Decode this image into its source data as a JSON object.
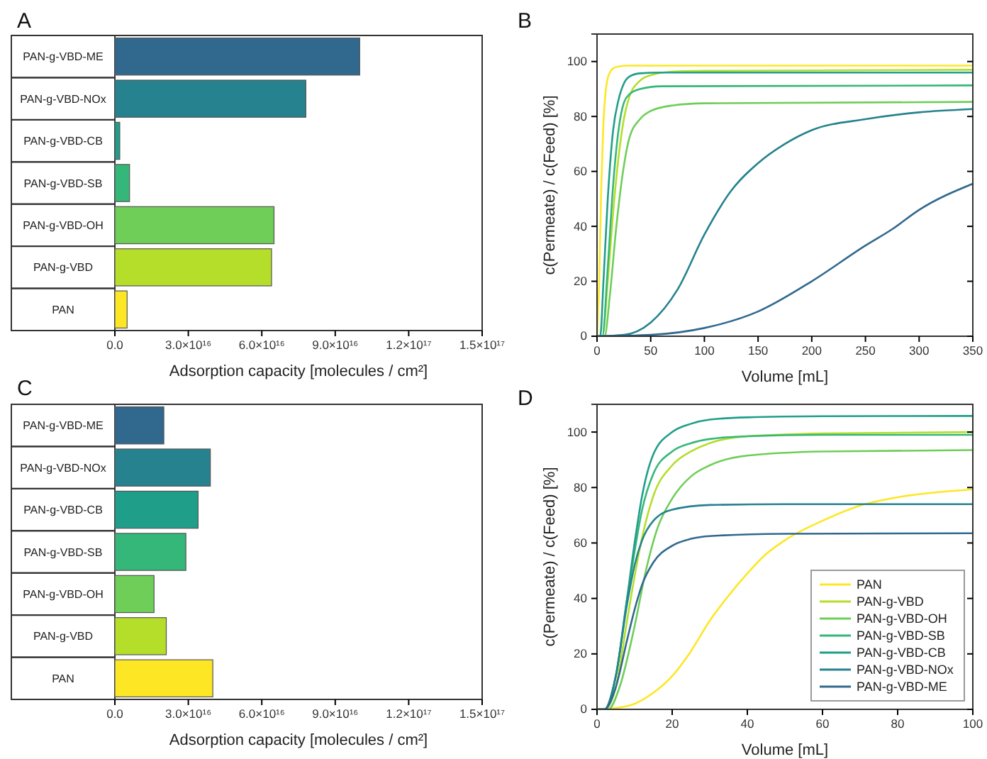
{
  "chart_data": [
    {
      "type": "bar",
      "title": "A",
      "orientation": "horizontal",
      "categories": [
        "PAN-g-VBD-ME",
        "PAN-g-VBD-NOx",
        "PAN-g-VBD-CB",
        "PAN-g-VBD-SB",
        "PAN-g-VBD-OH",
        "PAN-g-VBD",
        "PAN"
      ],
      "values": [
        1e+17,
        7.8e+16,
        2000000000000000.0,
        6000000000000000.0,
        6.5e+16,
        6.4e+16,
        5000000000000000.0
      ],
      "colors": [
        "#31688e",
        "#26828e",
        "#1f9e89",
        "#35b779",
        "#6ece58",
        "#b5de2b",
        "#fde725"
      ],
      "xlim": [
        0,
        1.5e+17
      ],
      "xticks": [
        {
          "value": 0,
          "label": "0.0"
        },
        {
          "value": 3e+16,
          "label": "3.0×10¹⁶"
        },
        {
          "value": 6e+16,
          "label": "6.0×10¹⁶"
        },
        {
          "value": 9e+16,
          "label": "9.0×10¹⁶"
        },
        {
          "value": 1.2e+17,
          "label": "1.2×10¹⁷"
        },
        {
          "value": 1.5e+17,
          "label": "1.5×10¹⁷"
        }
      ],
      "xlabel": "Adsorption capacity [molecules / cm²]"
    },
    {
      "type": "line",
      "title": "B",
      "xlabel": "Volume [mL]",
      "ylabel": "c(Permeate) / c(Feed) [%]",
      "xlim": [
        0,
        350
      ],
      "ylim": [
        0,
        110
      ],
      "xticks": [
        0,
        50,
        100,
        150,
        200,
        250,
        300,
        350
      ],
      "yticks": [
        0,
        20,
        40,
        60,
        80,
        100
      ],
      "series": [
        {
          "color": "#fde725",
          "x": [
            0,
            2,
            4,
            6,
            8,
            10,
            12,
            15,
            20,
            30,
            50,
            100,
            200,
            350
          ],
          "values": [
            0,
            20,
            55,
            78,
            89,
            94,
            96,
            97.5,
            98.2,
            98.5,
            98.5,
            98.5,
            98.5,
            98.5
          ]
        },
        {
          "color": "#b5de2b",
          "x": [
            0,
            5,
            10,
            15,
            20,
            25,
            30,
            40,
            50,
            70,
            100,
            350
          ],
          "values": [
            0,
            0,
            20,
            45,
            65,
            79,
            87,
            93,
            95,
            96.3,
            96.6,
            97
          ]
        },
        {
          "color": "#6ece58",
          "x": [
            0,
            7,
            12,
            18,
            25,
            30,
            40,
            50,
            70,
            100,
            350
          ],
          "values": [
            0,
            0,
            15,
            40,
            62,
            72,
            79,
            82,
            84,
            84.8,
            85.3
          ]
        },
        {
          "color": "#35b779",
          "x": [
            0,
            5,
            10,
            15,
            20,
            25,
            30,
            40,
            60,
            350
          ],
          "values": [
            0,
            0,
            25,
            55,
            75,
            85,
            88,
            90,
            91,
            91.3
          ]
        },
        {
          "color": "#1f9e89",
          "x": [
            0,
            3,
            6,
            10,
            15,
            20,
            25,
            30,
            40,
            60,
            350
          ],
          "values": [
            0,
            0,
            20,
            50,
            75,
            86,
            92,
            94.5,
            95.7,
            96,
            96
          ]
        },
        {
          "color": "#26828e",
          "x": [
            0,
            25,
            50,
            75,
            100,
            125,
            150,
            175,
            200,
            250,
            300,
            350
          ],
          "values": [
            0,
            0.5,
            5,
            17,
            37,
            53,
            63,
            70,
            75,
            79,
            81.5,
            82.7
          ]
        },
        {
          "color": "#31688e",
          "x": [
            0,
            50,
            100,
            150,
            200,
            250,
            275,
            300,
            350
          ],
          "values": [
            0,
            0.5,
            3,
            9,
            20,
            33,
            39,
            46,
            55.5
          ]
        }
      ]
    },
    {
      "type": "bar",
      "title": "C",
      "orientation": "horizontal",
      "categories": [
        "PAN-g-VBD-ME",
        "PAN-g-VBD-NOx",
        "PAN-g-VBD-CB",
        "PAN-g-VBD-SB",
        "PAN-g-VBD-OH",
        "PAN-g-VBD",
        "PAN"
      ],
      "values": [
        2e+16,
        3.9e+16,
        3.4e+16,
        2.9e+16,
        1.6e+16,
        2.1e+16,
        4e+16
      ],
      "colors": [
        "#31688e",
        "#26828e",
        "#1f9e89",
        "#35b779",
        "#6ece58",
        "#b5de2b",
        "#fde725"
      ],
      "xlim": [
        0,
        1.5e+17
      ],
      "xticks": [
        {
          "value": 0,
          "label": "0.0"
        },
        {
          "value": 3e+16,
          "label": "3.0×10¹⁶"
        },
        {
          "value": 6e+16,
          "label": "6.0×10¹⁶"
        },
        {
          "value": 9e+16,
          "label": "9.0×10¹⁶"
        },
        {
          "value": 1.2e+17,
          "label": "1.2×10¹⁷"
        },
        {
          "value": 1.5e+17,
          "label": "1.5×10¹⁷"
        }
      ],
      "xlabel": "Adsorption capacity [molecules / cm²]"
    },
    {
      "type": "line",
      "title": "D",
      "xlabel": "Volume [mL]",
      "ylabel": "c(Permeate) / c(Feed) [%]",
      "xlim": [
        0,
        100
      ],
      "ylim": [
        0,
        110
      ],
      "xticks": [
        0,
        20,
        40,
        60,
        80,
        100
      ],
      "yticks": [
        0,
        20,
        40,
        60,
        80,
        100
      ],
      "legend": "bottom right",
      "series": [
        {
          "name": "PAN",
          "color": "#fde725",
          "x": [
            0,
            5,
            10,
            15,
            20,
            25,
            30,
            35,
            40,
            45,
            50,
            60,
            70,
            80,
            90,
            100
          ],
          "values": [
            0,
            0.5,
            2,
            6,
            12,
            21,
            32,
            41,
            49,
            56,
            61,
            68,
            73.5,
            76.5,
            78.2,
            79.3
          ]
        },
        {
          "name": "PAN-g-VBD",
          "color": "#b5de2b",
          "x": [
            0,
            2,
            5,
            8,
            10,
            12,
            15,
            20,
            25,
            30,
            40,
            60,
            100
          ],
          "values": [
            0,
            0,
            8,
            32,
            48,
            62,
            77,
            88,
            93,
            96,
            98.5,
            99.5,
            100
          ]
        },
        {
          "name": "PAN-g-VBD-OH",
          "color": "#6ece58",
          "x": [
            0,
            3,
            6,
            10,
            13,
            16,
            20,
            25,
            30,
            40,
            60,
            100
          ],
          "values": [
            0,
            0,
            8,
            30,
            50,
            65,
            76,
            84,
            88,
            91.5,
            93,
            93.5
          ]
        },
        {
          "name": "PAN-g-VBD-SB",
          "color": "#35b779",
          "x": [
            0,
            2,
            5,
            8,
            10,
            12,
            15,
            20,
            25,
            30,
            40,
            60,
            100
          ],
          "values": [
            0,
            0,
            12,
            40,
            57,
            72,
            85,
            93,
            96,
            97.5,
            98.5,
            99,
            99
          ]
        },
        {
          "name": "PAN-g-VBD-CB",
          "color": "#1f9e89",
          "x": [
            0,
            2,
            5,
            8,
            10,
            12,
            15,
            20,
            25,
            30,
            40,
            60,
            100
          ],
          "values": [
            0,
            0,
            12,
            40,
            60,
            77,
            92,
            100,
            103,
            104.5,
            105.3,
            105.7,
            105.8
          ]
        },
        {
          "name": "PAN-g-VBD-NOx",
          "color": "#26828e",
          "x": [
            0,
            2,
            5,
            8,
            10,
            12,
            15,
            20,
            30,
            50,
            100
          ],
          "values": [
            0,
            0,
            12,
            38,
            52,
            61,
            68,
            72,
            73.7,
            74,
            74
          ]
        },
        {
          "name": "PAN-g-VBD-ME",
          "color": "#31688e",
          "x": [
            0,
            2,
            5,
            8,
            10,
            12,
            15,
            20,
            25,
            30,
            50,
            100
          ],
          "values": [
            0,
            0,
            8,
            25,
            36,
            45,
            53,
            59,
            61.5,
            62.5,
            63.3,
            63.5
          ]
        }
      ]
    }
  ]
}
